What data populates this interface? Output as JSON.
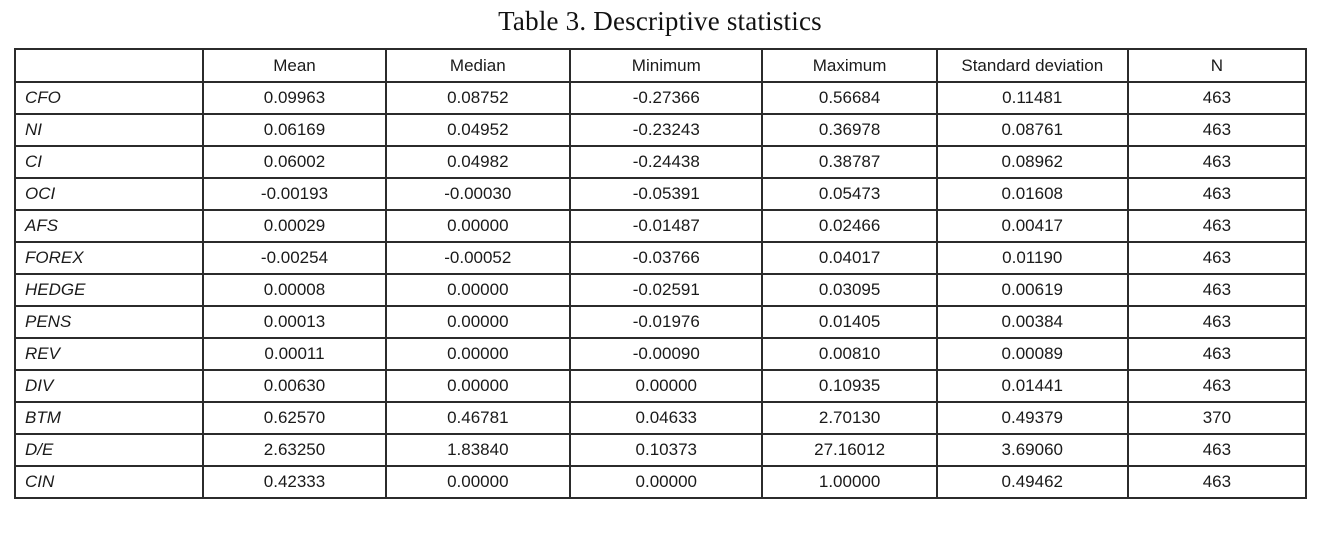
{
  "title": "Table 3. Descriptive statistics",
  "table": {
    "columns": [
      "",
      "Mean",
      "Median",
      "Minimum",
      "Maximum",
      "Standard deviation",
      "N"
    ],
    "rows": [
      {
        "label": "CFO",
        "values": [
          "0.09963",
          "0.08752",
          "-0.27366",
          "0.56684",
          "0.11481",
          "463"
        ]
      },
      {
        "label": "NI",
        "values": [
          "0.06169",
          "0.04952",
          "-0.23243",
          "0.36978",
          "0.08761",
          "463"
        ]
      },
      {
        "label": "CI",
        "values": [
          "0.06002",
          "0.04982",
          "-0.24438",
          "0.38787",
          "0.08962",
          "463"
        ]
      },
      {
        "label": "OCI",
        "values": [
          "-0.00193",
          "-0.00030",
          "-0.05391",
          "0.05473",
          "0.01608",
          "463"
        ]
      },
      {
        "label": "AFS",
        "values": [
          "0.00029",
          "0.00000",
          "-0.01487",
          "0.02466",
          "0.00417",
          "463"
        ]
      },
      {
        "label": "FOREX",
        "values": [
          "-0.00254",
          "-0.00052",
          "-0.03766",
          "0.04017",
          "0.01190",
          "463"
        ]
      },
      {
        "label": "HEDGE",
        "values": [
          "0.00008",
          "0.00000",
          "-0.02591",
          "0.03095",
          "0.00619",
          "463"
        ]
      },
      {
        "label": "PENS",
        "values": [
          "0.00013",
          "0.00000",
          "-0.01976",
          "0.01405",
          "0.00384",
          "463"
        ]
      },
      {
        "label": "REV",
        "values": [
          "0.00011",
          "0.00000",
          "-0.00090",
          "0.00810",
          "0.00089",
          "463"
        ]
      },
      {
        "label": "DIV",
        "values": [
          "0.00630",
          "0.00000",
          "0.00000",
          "0.10935",
          "0.01441",
          "463"
        ]
      },
      {
        "label": "BTM",
        "values": [
          "0.62570",
          "0.46781",
          "0.04633",
          "2.70130",
          "0.49379",
          "370"
        ]
      },
      {
        "label": "D/E",
        "values": [
          "2.63250",
          "1.83840",
          "0.10373",
          "27.16012",
          "3.69060",
          "463"
        ]
      },
      {
        "label": "CIN",
        "values": [
          "0.42333",
          "0.00000",
          "0.00000",
          "1.00000",
          "0.49462",
          "463"
        ]
      }
    ]
  }
}
